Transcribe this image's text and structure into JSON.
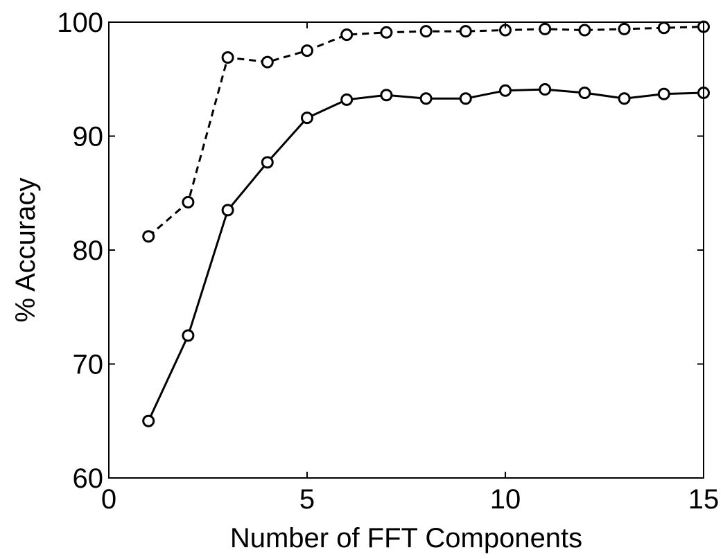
{
  "chart_data": {
    "type": "line",
    "title": "",
    "xlabel": "Number of FFT Components",
    "ylabel": "% Accuracy",
    "xlim": [
      0,
      15
    ],
    "ylim": [
      60,
      100
    ],
    "xticks": [
      0,
      5,
      10,
      15
    ],
    "yticks": [
      60,
      70,
      80,
      90,
      100
    ],
    "grid": false,
    "legend": "none",
    "series": [
      {
        "line_style": "dashed",
        "marker": "circle",
        "color": "#000000",
        "x": [
          1,
          2,
          3,
          4,
          5,
          6,
          7,
          8,
          9,
          10,
          11,
          12,
          13,
          14,
          15
        ],
        "y": [
          81.2,
          84.2,
          96.9,
          96.5,
          97.5,
          98.9,
          99.1,
          99.2,
          99.2,
          99.3,
          99.4,
          99.3,
          99.4,
          99.5,
          99.6
        ]
      },
      {
        "line_style": "solid",
        "marker": "circle",
        "color": "#000000",
        "x": [
          1,
          2,
          3,
          4,
          5,
          6,
          7,
          8,
          9,
          10,
          11,
          12,
          13,
          14,
          15
        ],
        "y": [
          65.0,
          72.5,
          83.5,
          87.7,
          91.6,
          93.2,
          93.6,
          93.3,
          93.3,
          94.0,
          94.1,
          93.8,
          93.3,
          93.7,
          93.8
        ]
      }
    ]
  }
}
